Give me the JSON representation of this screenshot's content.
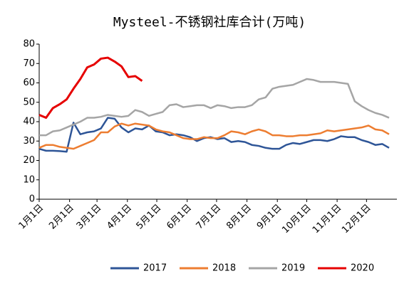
{
  "chart_data": {
    "type": "line",
    "title": "Mysteel-不锈钢社库合计(万吨)",
    "x": [
      0,
      7,
      14,
      21,
      28,
      35,
      42,
      49,
      56,
      63,
      70,
      77,
      84,
      91,
      98,
      105,
      112,
      119,
      126,
      133,
      140,
      147,
      154,
      161,
      168,
      175,
      182,
      189,
      196,
      203,
      210,
      217,
      224,
      231,
      238,
      245,
      252,
      259,
      266,
      273,
      280,
      287,
      294,
      301,
      308,
      315,
      322,
      329,
      336,
      343,
      350,
      357
    ],
    "xlim": [
      0,
      365
    ],
    "xticks": [
      {
        "value": 0,
        "label": "1月1日"
      },
      {
        "value": 31,
        "label": "2月1日"
      },
      {
        "value": 59,
        "label": "3月1日"
      },
      {
        "value": 90,
        "label": "4月1日"
      },
      {
        "value": 120,
        "label": "5月1日"
      },
      {
        "value": 151,
        "label": "6月1日"
      },
      {
        "value": 181,
        "label": "7月1日"
      },
      {
        "value": 212,
        "label": "8月1日"
      },
      {
        "value": 243,
        "label": "9月1日"
      },
      {
        "value": 273,
        "label": "10月1日"
      },
      {
        "value": 304,
        "label": "11月1日"
      },
      {
        "value": 334,
        "label": "12月1日"
      }
    ],
    "ylim": [
      0,
      80
    ],
    "yticks": [
      0,
      10,
      20,
      30,
      40,
      50,
      60,
      70,
      80
    ],
    "legend": "bottom",
    "series": [
      {
        "name": "2017",
        "color": "#2e5597",
        "values": [
          26,
          25,
          25,
          24.8,
          24.5,
          39.5,
          33.5,
          34.5,
          35,
          36.5,
          42,
          41.5,
          37,
          34.5,
          36.5,
          36,
          38,
          35,
          34.5,
          33,
          33.5,
          33,
          32,
          30,
          31.5,
          32,
          31,
          31.5,
          29.5,
          30,
          29.5,
          28,
          27.5,
          26.5,
          26,
          26,
          28,
          29,
          28.5,
          29.5,
          30.5,
          30.5,
          30,
          31,
          32.5,
          32,
          32,
          30.5,
          29.5,
          28,
          28.5,
          26.5
        ]
      },
      {
        "name": "2018",
        "color": "#ed7d31",
        "values": [
          26.5,
          28,
          28,
          27,
          26.5,
          26,
          27.5,
          29,
          30.5,
          34.5,
          34.5,
          37.5,
          39,
          38,
          39,
          38.5,
          38,
          36,
          35,
          34.5,
          33,
          31.5,
          31,
          31,
          32,
          31.5,
          31.5,
          33,
          35,
          34.5,
          33.5,
          35,
          36,
          35,
          33,
          33,
          32.5,
          32.5,
          33,
          33,
          33.5,
          34,
          35.5,
          35,
          35.5,
          36,
          36.5,
          37,
          38,
          36,
          35.5,
          33.5
        ]
      },
      {
        "name": "2019",
        "color": "#a5a5a5",
        "values": [
          33,
          33,
          35,
          35.5,
          37,
          38.5,
          40,
          42,
          42,
          42.5,
          43.5,
          43,
          42.5,
          43,
          46,
          45,
          43,
          44,
          45,
          48.5,
          49,
          47.5,
          48,
          48.5,
          48.5,
          47,
          48.5,
          48,
          47,
          47.5,
          47.5,
          48.5,
          51.5,
          52.5,
          57,
          58,
          58.5,
          59,
          60.5,
          62,
          61.5,
          60.5,
          60.5,
          60.5,
          60,
          59.5,
          50.5,
          48,
          46,
          44.5,
          43.5,
          42
        ]
      },
      {
        "name": "2020",
        "color": "#e60000",
        "values": [
          43.5,
          42,
          47,
          49,
          51.5,
          57,
          62,
          68,
          69.5,
          72.5,
          73,
          71,
          68.5,
          63,
          63.5,
          61,
          null,
          null,
          null,
          null,
          null,
          null,
          null,
          null,
          null,
          null,
          null,
          null,
          null,
          null,
          null,
          null,
          null,
          null,
          null,
          null,
          null,
          null,
          null,
          null,
          null,
          null,
          null,
          null,
          null,
          null,
          null,
          null,
          null,
          null,
          null,
          null
        ]
      }
    ]
  }
}
